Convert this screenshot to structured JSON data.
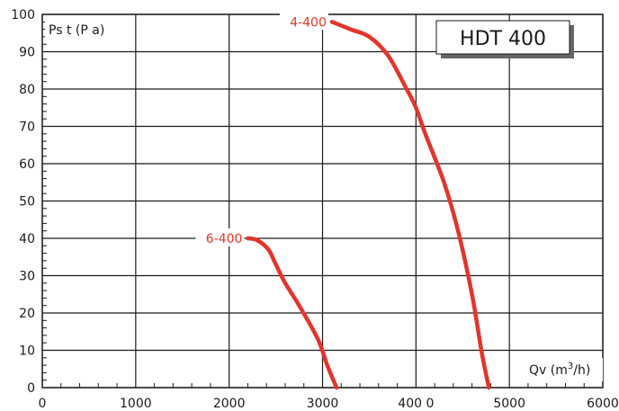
{
  "chart_data": {
    "type": "line",
    "title": "HDT 400",
    "ylabel": "Ps t (P a)",
    "xlabel_prefix": "Qv (m",
    "xlabel_sup": "3",
    "xlabel_suffix": "/h)",
    "xlim": [
      0,
      6000
    ],
    "ylim": [
      0,
      100
    ],
    "x_ticks": [
      0,
      1000,
      2000,
      3000,
      4000,
      5000,
      6000
    ],
    "x_tick_labels": [
      "0",
      "1000",
      "2000",
      "3000",
      "400 0",
      "5000",
      "6000"
    ],
    "y_ticks": [
      0,
      10,
      20,
      30,
      40,
      50,
      60,
      70,
      80,
      90,
      100
    ],
    "y_tick_labels": [
      "0",
      "10",
      "20",
      "30",
      "40",
      "50",
      "60",
      "70",
      "80",
      "90",
      "100"
    ],
    "grid": true,
    "series": [
      {
        "name": "4-400",
        "color": "#e2352b",
        "x": [
          3100,
          3300,
          3500,
          3700,
          3900,
          4000,
          4100,
          4300,
          4450,
          4600,
          4700,
          4780
        ],
        "y": [
          98,
          96,
          94,
          89,
          80,
          75,
          68,
          55,
          42,
          25,
          10,
          0
        ]
      },
      {
        "name": "6-400",
        "color": "#e2352b",
        "x": [
          2200,
          2300,
          2420,
          2500,
          2600,
          2750,
          2950,
          3050,
          3150
        ],
        "y": [
          40,
          39.5,
          37,
          33,
          28,
          22,
          13,
          6,
          0
        ]
      }
    ]
  }
}
